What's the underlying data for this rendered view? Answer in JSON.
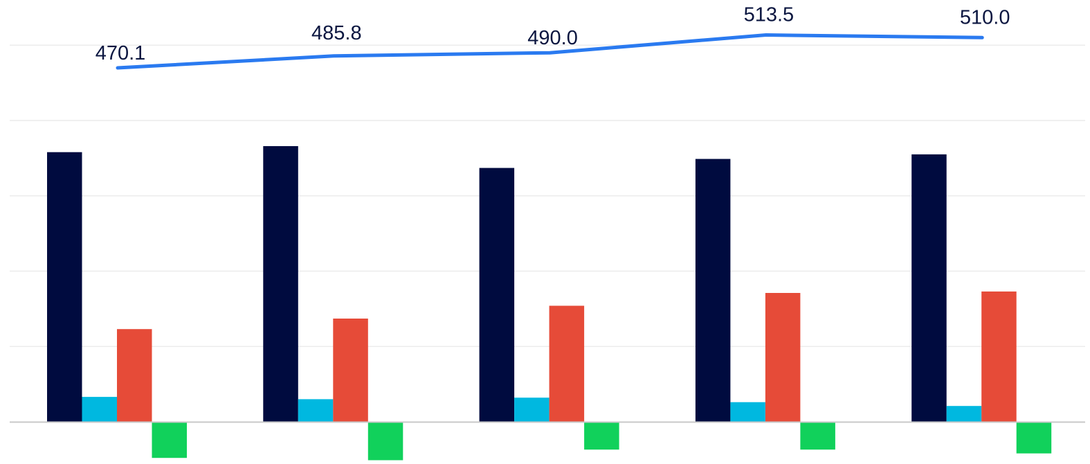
{
  "chart_data": {
    "type": "bar",
    "categories": [
      "",
      "",
      "",
      "",
      ""
    ],
    "series": [
      {
        "type": "bar",
        "color": "#000b3f",
        "values": [
          358,
          366,
          337,
          349,
          355
        ]
      },
      {
        "type": "bar",
        "color": "#00b8e0",
        "values": [
          33,
          30,
          32,
          26,
          21
        ]
      },
      {
        "type": "bar",
        "color": "#e64b38",
        "values": [
          123,
          137,
          154,
          171,
          173
        ]
      },
      {
        "type": "bar",
        "color": "#11d15b",
        "values": [
          -48,
          -51,
          -37,
          -37,
          -42
        ]
      },
      {
        "type": "line",
        "color": "#2a7af0",
        "values": [
          470.1,
          485.8,
          490.0,
          513.5,
          510.0
        ],
        "labels": [
          "470.1",
          "485.8",
          "490.0",
          "513.5",
          "510.0"
        ]
      }
    ],
    "ylim": [
      -50,
      500
    ],
    "grid": true,
    "legend": "none"
  }
}
